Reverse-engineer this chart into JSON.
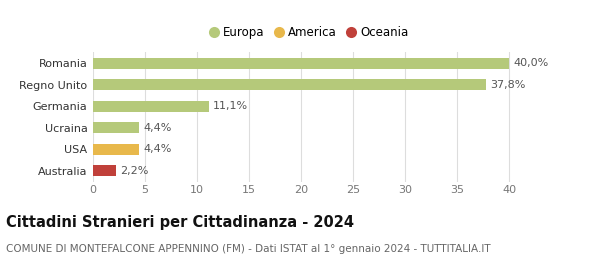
{
  "categories": [
    "Australia",
    "USA",
    "Ucraina",
    "Germania",
    "Regno Unito",
    "Romania"
  ],
  "values": [
    2.2,
    4.4,
    4.4,
    11.1,
    37.8,
    40.0
  ],
  "labels": [
    "2,2%",
    "4,4%",
    "4,4%",
    "11,1%",
    "37,8%",
    "40,0%"
  ],
  "colors": [
    "#c0403a",
    "#e8b84b",
    "#b5c97a",
    "#b5c97a",
    "#b5c97a",
    "#b5c97a"
  ],
  "legend": [
    {
      "label": "Europa",
      "color": "#b5c97a"
    },
    {
      "label": "America",
      "color": "#e8b84b"
    },
    {
      "label": "Oceania",
      "color": "#c0403a"
    }
  ],
  "xlim": [
    0,
    41.5
  ],
  "xticks": [
    0,
    5,
    10,
    15,
    20,
    25,
    30,
    35,
    40
  ],
  "title": "Cittadini Stranieri per Cittadinanza - 2024",
  "subtitle": "COMUNE DI MONTEFALCONE APPENNINO (FM) - Dati ISTAT al 1° gennaio 2024 - TUTTITALIA.IT",
  "bar_height": 0.52,
  "background_color": "#ffffff",
  "grid_color": "#dddddd",
  "title_fontsize": 10.5,
  "subtitle_fontsize": 7.5,
  "label_fontsize": 8,
  "tick_fontsize": 8,
  "legend_fontsize": 8.5
}
